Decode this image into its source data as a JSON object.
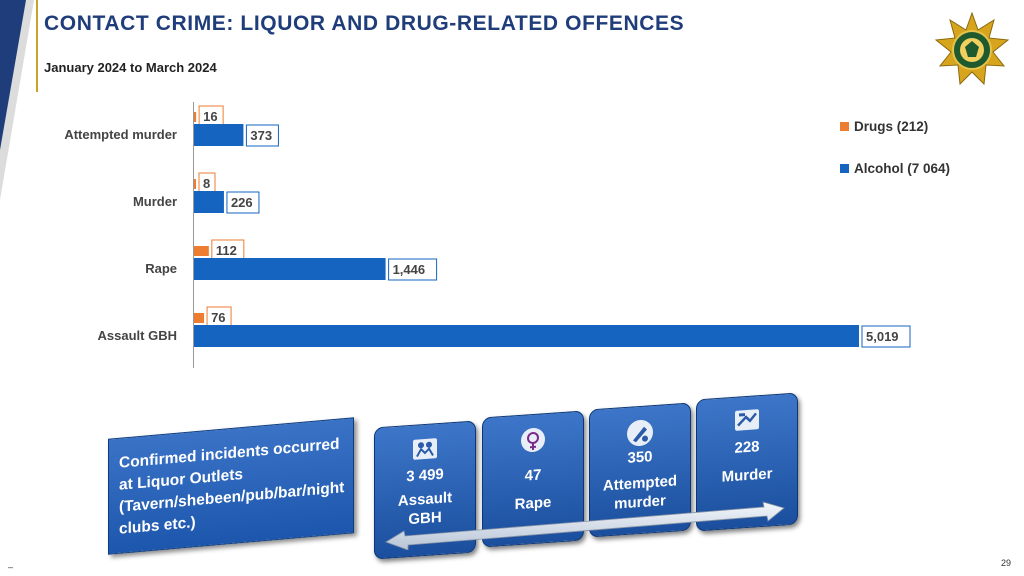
{
  "header": {
    "title": "CONTACT CRIME: LIQUOR AND DRUG-RELATED OFFENCES",
    "subtitle": "January 2024 to March 2024"
  },
  "colors": {
    "navy": "#1f3d7a",
    "gold": "#c9a227",
    "alcohol": "#1565c0",
    "drugs": "#ed7d31",
    "tile": "#1d57ad"
  },
  "chart_data": {
    "type": "bar",
    "orientation": "horizontal",
    "categories": [
      "Attempted murder",
      "Murder",
      "Rape",
      "Assault GBH"
    ],
    "series": [
      {
        "name": "Drugs (212)",
        "values": [
          16,
          8,
          112,
          76
        ],
        "labels": [
          "16",
          "8",
          "112",
          "76"
        ],
        "color": "#ed7d31"
      },
      {
        "name": "Alcohol (7 064)",
        "values": [
          373,
          226,
          1446,
          5019
        ],
        "labels": [
          "373",
          "226",
          "1,446",
          "5,019"
        ],
        "color": "#1565c0"
      }
    ],
    "xlim": [
      0,
      5019
    ],
    "grid": false,
    "legend_position": "top-right"
  },
  "liquor_outlets": {
    "heading": "Confirmed incidents occurred at Liquor Outlets (Tavern/shebeen/pub/bar/night clubs etc.)",
    "tiles": [
      {
        "value": "3 499",
        "label": "Assault GBH",
        "icon": "assault-icon"
      },
      {
        "value": "47",
        "label": "Rape",
        "icon": "rape-icon"
      },
      {
        "value": "350",
        "label": "Attempted murder",
        "icon": "attempted-murder-icon"
      },
      {
        "value": "228",
        "label": "Murder",
        "icon": "murder-icon"
      }
    ]
  },
  "footer": {
    "dash": "–",
    "page_number": "29"
  }
}
